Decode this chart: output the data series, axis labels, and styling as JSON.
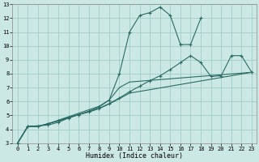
{
  "xlabel": "Humidex (Indice chaleur)",
  "bg_color": "#cce8e4",
  "grid_color": "#a0cdc8",
  "line_color": "#2a6b65",
  "xlim": [
    -0.5,
    23.5
  ],
  "ylim": [
    3,
    13
  ],
  "xticks": [
    0,
    1,
    2,
    3,
    4,
    5,
    6,
    7,
    8,
    9,
    10,
    11,
    12,
    13,
    14,
    15,
    16,
    17,
    18,
    19,
    20,
    21,
    22,
    23
  ],
  "yticks": [
    3,
    4,
    5,
    6,
    7,
    8,
    9,
    10,
    11,
    12,
    13
  ],
  "series": [
    {
      "x": [
        0,
        1,
        3,
        4,
        5,
        6,
        7,
        8,
        9,
        10,
        11,
        12,
        13,
        14,
        15,
        16,
        17,
        18
      ],
      "y": [
        3.0,
        4.2,
        4.3,
        4.5,
        4.8,
        5.05,
        5.3,
        5.6,
        6.1,
        8.0,
        11.0,
        12.2,
        12.4,
        12.8,
        12.2,
        10.1,
        10.1,
        12.0
      ],
      "marker": true
    },
    {
      "x": [
        0,
        1,
        2,
        3,
        4,
        5,
        6,
        7,
        8,
        9,
        10,
        11,
        12,
        13,
        14,
        15,
        16,
        17,
        18,
        19,
        20,
        21,
        22,
        23
      ],
      "y": [
        3.0,
        4.2,
        4.2,
        4.4,
        4.6,
        4.85,
        5.05,
        5.25,
        5.5,
        5.85,
        6.25,
        6.7,
        7.1,
        7.5,
        7.85,
        8.3,
        8.8,
        9.3,
        8.8,
        7.8,
        7.85,
        9.3,
        9.3,
        8.1
      ],
      "marker": true
    },
    {
      "x": [
        0,
        1,
        2,
        3,
        4,
        5,
        6,
        7,
        8,
        9,
        10,
        11,
        23
      ],
      "y": [
        3.0,
        4.2,
        4.2,
        4.4,
        4.65,
        4.9,
        5.15,
        5.4,
        5.65,
        6.1,
        7.0,
        7.4,
        8.1
      ],
      "marker": false
    },
    {
      "x": [
        0,
        1,
        2,
        3,
        4,
        5,
        6,
        7,
        8,
        9,
        10,
        11,
        23
      ],
      "y": [
        3.0,
        4.2,
        4.2,
        4.4,
        4.6,
        4.82,
        5.05,
        5.25,
        5.48,
        5.82,
        6.2,
        6.6,
        8.1
      ],
      "marker": false
    }
  ]
}
